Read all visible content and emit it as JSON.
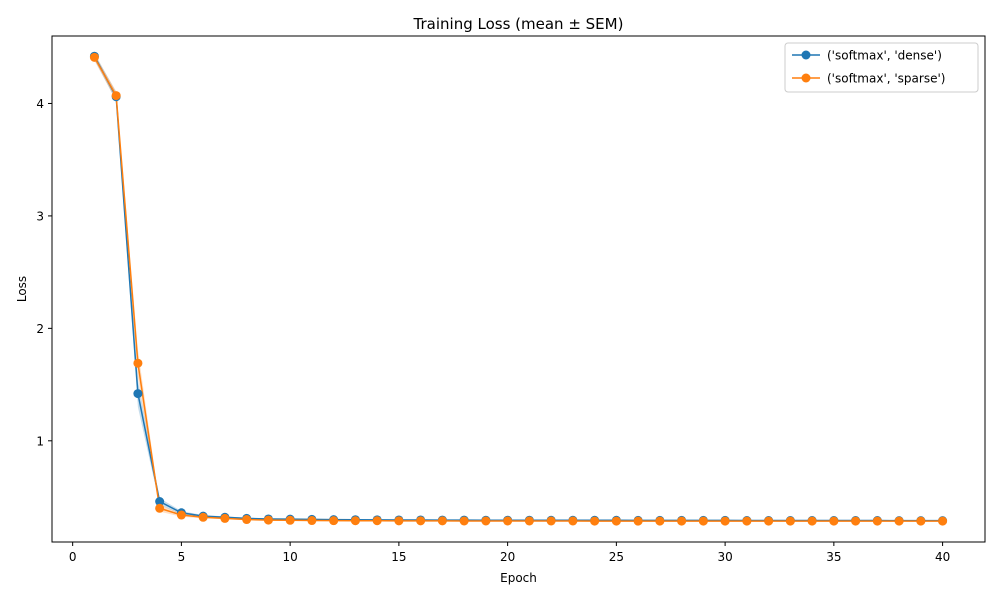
{
  "chart_data": {
    "type": "line",
    "title": "Training Loss (mean ± SEM)",
    "xlabel": "Epoch",
    "ylabel": "Loss",
    "xlim": [
      -0.95,
      41.95
    ],
    "ylim": [
      0.1,
      4.6
    ],
    "xticks": [
      0,
      5,
      10,
      15,
      20,
      25,
      30,
      35,
      40
    ],
    "yticks": [
      1,
      2,
      3,
      4
    ],
    "grid": false,
    "legend_position": "top-right",
    "x": [
      1,
      2,
      3,
      4,
      5,
      6,
      7,
      8,
      9,
      10,
      11,
      12,
      13,
      14,
      15,
      16,
      17,
      18,
      19,
      20,
      21,
      22,
      23,
      24,
      25,
      26,
      27,
      28,
      29,
      30,
      31,
      32,
      33,
      34,
      35,
      36,
      37,
      38,
      39,
      40
    ],
    "series": [
      {
        "name": "('softmax', 'dense')",
        "color": "#1f77b4",
        "values": [
          4.42,
          4.06,
          1.42,
          0.46,
          0.36,
          0.33,
          0.32,
          0.31,
          0.305,
          0.303,
          0.301,
          0.299,
          0.298,
          0.297,
          0.296,
          0.296,
          0.295,
          0.295,
          0.294,
          0.294,
          0.294,
          0.293,
          0.293,
          0.293,
          0.293,
          0.292,
          0.292,
          0.292,
          0.292,
          0.292,
          0.291,
          0.291,
          0.291,
          0.291,
          0.291,
          0.291,
          0.291,
          0.29,
          0.29,
          0.29
        ],
        "sem": [
          0.03,
          0.04,
          0.12,
          0.03,
          0.015,
          0.01,
          0.008,
          0.006,
          0.005,
          0.005,
          0.004,
          0.004,
          0.004,
          0.004,
          0.004,
          0.004,
          0.004,
          0.004,
          0.004,
          0.004,
          0.004,
          0.004,
          0.004,
          0.004,
          0.004,
          0.004,
          0.004,
          0.004,
          0.004,
          0.004,
          0.004,
          0.004,
          0.004,
          0.004,
          0.004,
          0.004,
          0.004,
          0.004,
          0.004,
          0.004
        ]
      },
      {
        "name": "('softmax', 'sparse')",
        "color": "#ff7f0e",
        "values": [
          4.41,
          4.07,
          1.69,
          0.4,
          0.34,
          0.32,
          0.31,
          0.3,
          0.295,
          0.293,
          0.291,
          0.29,
          0.289,
          0.289,
          0.288,
          0.288,
          0.288,
          0.287,
          0.287,
          0.287,
          0.287,
          0.287,
          0.287,
          0.286,
          0.286,
          0.286,
          0.286,
          0.286,
          0.286,
          0.286,
          0.286,
          0.286,
          0.286,
          0.286,
          0.286,
          0.286,
          0.286,
          0.286,
          0.286,
          0.286
        ],
        "sem": [
          0.03,
          0.04,
          0.12,
          0.03,
          0.015,
          0.01,
          0.008,
          0.006,
          0.005,
          0.005,
          0.004,
          0.004,
          0.004,
          0.004,
          0.004,
          0.004,
          0.004,
          0.004,
          0.004,
          0.004,
          0.004,
          0.004,
          0.004,
          0.004,
          0.004,
          0.004,
          0.004,
          0.004,
          0.004,
          0.004,
          0.004,
          0.004,
          0.004,
          0.004,
          0.004,
          0.004,
          0.004,
          0.004,
          0.004,
          0.004
        ]
      }
    ]
  }
}
